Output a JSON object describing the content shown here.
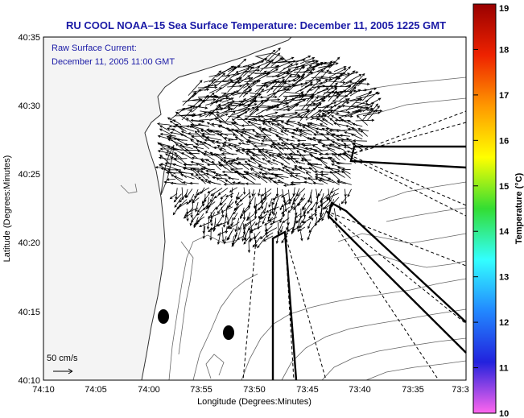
{
  "title": "RU COOL  NOAA–15  Sea Surface Temperature:  December 11, 2005 1225 GMT",
  "annotation": {
    "line1": "Raw Surface Current:",
    "line2": "December 11, 2005 11:00 GMT"
  },
  "axes": {
    "xlabel": "Longitude (Degrees:Minutes)",
    "ylabel": "Latitude (Degrees:Minutes)",
    "xticks": [
      "74:10",
      "74:05",
      "74:00",
      "73:55",
      "73:50",
      "73:45",
      "73:40",
      "73:35",
      "73:3"
    ],
    "yticks": [
      "40:35",
      "40:30",
      "40:25",
      "40:20",
      "40:15",
      "40:10"
    ]
  },
  "scale_label": "50 cm/s",
  "colorbar": {
    "label": "Temperature (°C)",
    "ticks": [
      "19",
      "18",
      "17",
      "16",
      "15",
      "14",
      "13",
      "12",
      "11",
      "10"
    ],
    "min": 10,
    "max": 19,
    "stops": [
      "#ff66ee",
      "#2222dd",
      "#2288ff",
      "#33ffff",
      "#33dd33",
      "#ffff00",
      "#ff9900",
      "#ee2200",
      "#990000"
    ]
  },
  "colors": {
    "title_text": "#1a1aa6",
    "land": "#f4f4f4",
    "contour": "#555555"
  }
}
